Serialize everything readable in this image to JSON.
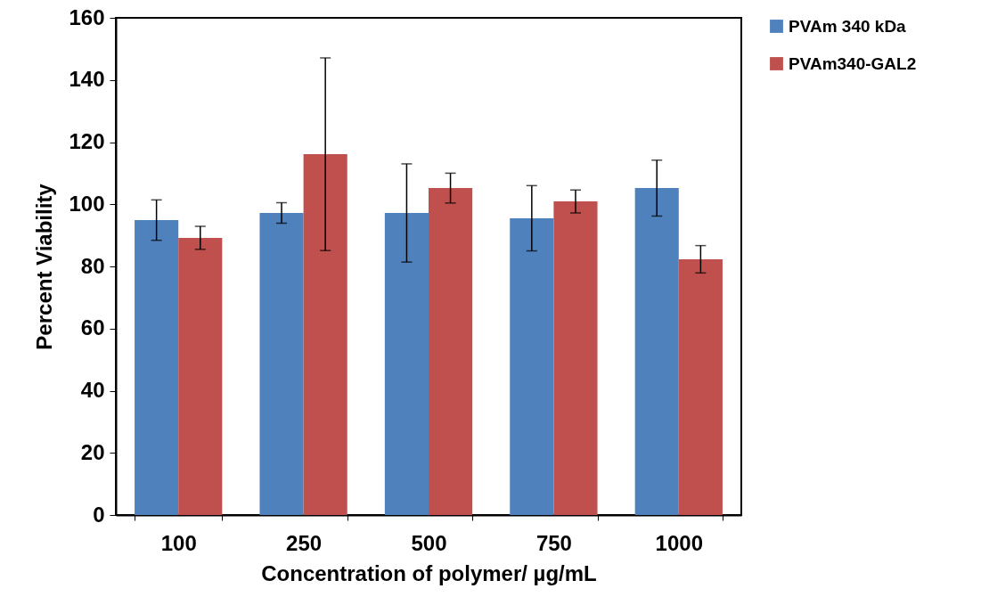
{
  "chart_data": {
    "type": "bar",
    "xlabel": "Concentration of polymer/ µg/mL",
    "ylabel": "Percent Viability",
    "categories": [
      "100",
      "250",
      "500",
      "750",
      "1000"
    ],
    "series": [
      {
        "name": "PVAm 340 kDa",
        "color": "#4f81bd",
        "values": [
          94.9,
          97.2,
          97.2,
          95.5,
          105.2
        ],
        "errors": [
          6.5,
          3.3,
          15.8,
          10.5,
          9
        ]
      },
      {
        "name": "PVAm340-GAL2",
        "color": "#c0504d",
        "values": [
          89.2,
          116.1,
          105.2,
          100.9,
          82.3
        ],
        "errors": [
          3.7,
          31,
          4.8,
          3.7,
          4.4
        ]
      }
    ],
    "ylim": [
      0,
      160
    ],
    "yticks": [
      0,
      20,
      40,
      60,
      80,
      100,
      120,
      140,
      160
    ],
    "grid": false,
    "legend": "right"
  }
}
